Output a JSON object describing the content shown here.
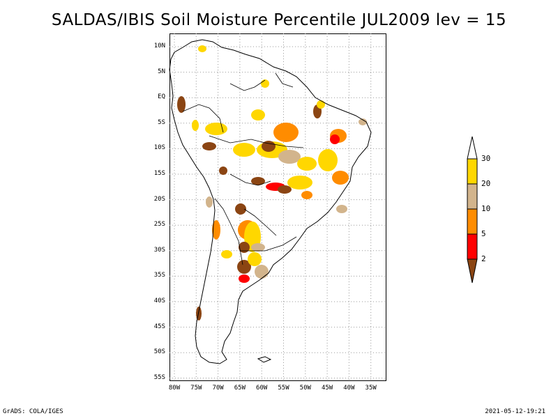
{
  "title": "SALDAS/IBIS Soil Moisture Percentile JUL2009 lev = 15",
  "map": {
    "lat_labels": [
      "10N",
      "5N",
      "EQ",
      "5S",
      "10S",
      "15S",
      "20S",
      "25S",
      "30S",
      "35S",
      "40S",
      "45S",
      "50S",
      "55S"
    ],
    "lon_labels": [
      "80W",
      "75W",
      "70W",
      "65W",
      "60W",
      "55W",
      "50W",
      "45W",
      "40W",
      "35W"
    ],
    "lon_range": [
      -80,
      -35
    ],
    "lat_range": [
      -55,
      10
    ]
  },
  "legend": {
    "labels": [
      "30",
      "20",
      "10",
      "5",
      "2"
    ],
    "colors": [
      "#ffd700",
      "#d2b48c",
      "#ff8c00",
      "#ff0000",
      "#8b4513"
    ],
    "top_color": "#ffffff"
  },
  "footer": {
    "left": "GrADS: COLA/IGES",
    "right": "2021-05-12-19:21"
  }
}
